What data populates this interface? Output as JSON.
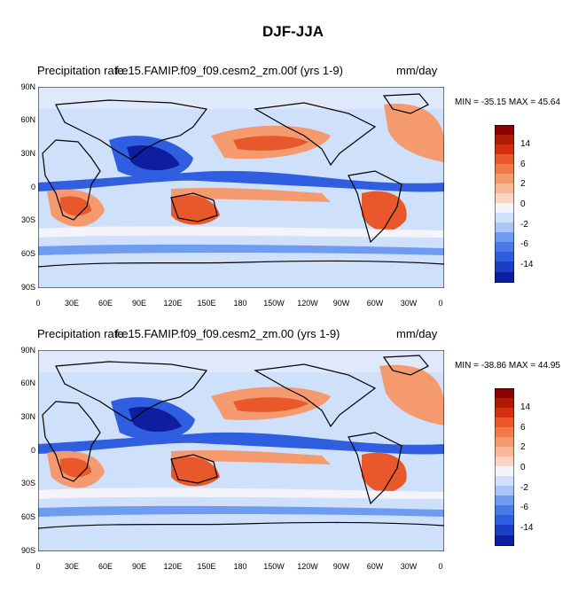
{
  "title": "DJF-JJA",
  "colors": {
    "deep_blue": "#0d1fa0",
    "blue": "#2f5fe0",
    "mid_blue": "#6f9cf0",
    "light_blue": "#cfe0fb",
    "white": "#f4f4fa",
    "light_red": "#fbd5c2",
    "mid_red": "#f59a6e",
    "red": "#e8582b",
    "dark_red": "#8b0000"
  },
  "panels": [
    {
      "title_left": "Precipitation rate",
      "title_center": "f.e15.FAMIP.f09_f09.cesm2_zm.00f (yrs 1-9)",
      "units": "mm/day",
      "stats": "MIN = -35.15 MAX =  45.64"
    },
    {
      "title_left": "Precipitation rate",
      "title_center": "f.e15.FAMIP.f09_f09.cesm2_zm.00 (yrs 1-9)",
      "units": "mm/day",
      "stats": "MIN = -38.86 MAX =  44.95"
    }
  ],
  "chart_data": [
    {
      "type": "heatmap",
      "title": "Precipitation rate  f.e15.FAMIP.f09_f09.cesm2_zm.00f (yrs 1-9)",
      "units": "mm/day",
      "min": -35.15,
      "max": 45.64,
      "x_ticks": [
        "0",
        "30E",
        "60E",
        "90E",
        "120E",
        "150E",
        "180",
        "150W",
        "120W",
        "90W",
        "60W",
        "30W",
        "0"
      ],
      "y_ticks": [
        "90N",
        "60N",
        "30N",
        "0",
        "30S",
        "60S",
        "90S"
      ],
      "xlim": [
        0,
        360
      ],
      "ylim": [
        -90,
        90
      ],
      "colorbar_labels": [
        "14",
        "6",
        "2",
        "0",
        "-2",
        "-6",
        "-14"
      ]
    },
    {
      "type": "heatmap",
      "title": "Precipitation rate  f.e15.FAMIP.f09_f09.cesm2_zm.00 (yrs 1-9)",
      "units": "mm/day",
      "min": -38.86,
      "max": 44.95,
      "x_ticks": [
        "0",
        "30E",
        "60E",
        "90E",
        "120E",
        "150E",
        "180",
        "150W",
        "120W",
        "90W",
        "60W",
        "30W",
        "0"
      ],
      "y_ticks": [
        "90N",
        "60N",
        "30N",
        "0",
        "30S",
        "60S",
        "90S"
      ],
      "xlim": [
        0,
        360
      ],
      "ylim": [
        -90,
        90
      ],
      "colorbar_labels": [
        "14",
        "6",
        "2",
        "0",
        "-2",
        "-6",
        "-14"
      ]
    }
  ]
}
